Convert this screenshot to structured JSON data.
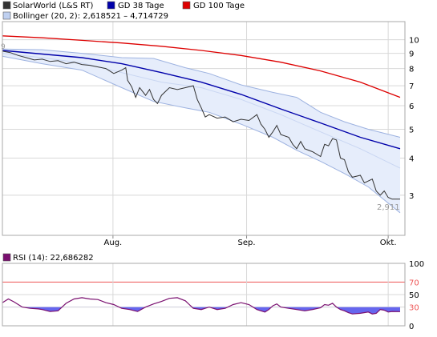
{
  "legend": {
    "series1": "SolarWorld (L&S RT)",
    "series2": "GD 38 Tage",
    "series3": "GD 100 Tage",
    "bollinger": "Bollinger (20, 2): 2,618521  –  4,714729",
    "rsi": "RSI (14): 22,686282"
  },
  "colors": {
    "price": "#333333",
    "gd38": "#0000aa",
    "gd100": "#dd0000",
    "band_fill": "#e6edfb",
    "band_line": "#9db2e0",
    "band_mid": "#c9d6f2",
    "rsi_line": "#7a1070",
    "rsi_fill": "#6666ee",
    "rsi_ref": "#ee5555",
    "grid": "#d8d8d8"
  },
  "chart_data": [
    {
      "type": "line",
      "scale": "log",
      "ylim": [
        2.2,
        11.5
      ],
      "yticks": [
        3,
        4,
        5,
        6,
        7,
        8,
        9,
        10
      ],
      "x_labels": [
        {
          "label": "Aug.",
          "t": 0.278
        },
        {
          "label": "Sep.",
          "t": 0.614
        },
        {
          "label": "Okt.",
          "t": 0.97
        }
      ],
      "price_start_label": "9",
      "last_value_label": "2,911",
      "series": [
        {
          "key": "price",
          "name": "SolarWorld (L&S RT)",
          "points": [
            [
              0,
              9.15
            ],
            [
              0.02,
              9.05
            ],
            [
              0.04,
              8.85
            ],
            [
              0.06,
              8.7
            ],
            [
              0.08,
              8.55
            ],
            [
              0.1,
              8.6
            ],
            [
              0.12,
              8.45
            ],
            [
              0.14,
              8.5
            ],
            [
              0.16,
              8.3
            ],
            [
              0.18,
              8.4
            ],
            [
              0.2,
              8.25
            ],
            [
              0.22,
              8.2
            ],
            [
              0.24,
              8.1
            ],
            [
              0.26,
              8.0
            ],
            [
              0.28,
              7.7
            ],
            [
              0.3,
              7.9
            ],
            [
              0.31,
              8.05
            ],
            [
              0.315,
              7.3
            ],
            [
              0.325,
              6.95
            ],
            [
              0.335,
              6.4
            ],
            [
              0.345,
              6.9
            ],
            [
              0.36,
              6.5
            ],
            [
              0.37,
              6.8
            ],
            [
              0.38,
              6.3
            ],
            [
              0.39,
              6.1
            ],
            [
              0.4,
              6.5
            ],
            [
              0.42,
              6.9
            ],
            [
              0.44,
              6.8
            ],
            [
              0.46,
              6.9
            ],
            [
              0.48,
              7.0
            ],
            [
              0.49,
              6.3
            ],
            [
              0.5,
              5.9
            ],
            [
              0.51,
              5.5
            ],
            [
              0.52,
              5.6
            ],
            [
              0.54,
              5.45
            ],
            [
              0.56,
              5.5
            ],
            [
              0.58,
              5.3
            ],
            [
              0.6,
              5.4
            ],
            [
              0.62,
              5.35
            ],
            [
              0.64,
              5.6
            ],
            [
              0.65,
              5.2
            ],
            [
              0.66,
              5.0
            ],
            [
              0.67,
              4.7
            ],
            [
              0.68,
              4.9
            ],
            [
              0.69,
              5.15
            ],
            [
              0.7,
              4.8
            ],
            [
              0.72,
              4.7
            ],
            [
              0.73,
              4.45
            ],
            [
              0.74,
              4.3
            ],
            [
              0.75,
              4.55
            ],
            [
              0.76,
              4.3
            ],
            [
              0.78,
              4.2
            ],
            [
              0.8,
              4.05
            ],
            [
              0.81,
              4.45
            ],
            [
              0.82,
              4.4
            ],
            [
              0.83,
              4.65
            ],
            [
              0.84,
              4.6
            ],
            [
              0.85,
              4.0
            ],
            [
              0.86,
              3.95
            ],
            [
              0.87,
              3.6
            ],
            [
              0.88,
              3.45
            ],
            [
              0.9,
              3.5
            ],
            [
              0.91,
              3.3
            ],
            [
              0.93,
              3.4
            ],
            [
              0.94,
              3.1
            ],
            [
              0.95,
              3.0
            ],
            [
              0.96,
              3.1
            ],
            [
              0.97,
              2.95
            ],
            [
              0.98,
              2.91
            ],
            [
              1.0,
              2.91
            ]
          ]
        },
        {
          "key": "gd38",
          "name": "GD 38 Tage",
          "points": [
            [
              0,
              9.2
            ],
            [
              0.1,
              8.95
            ],
            [
              0.2,
              8.7
            ],
            [
              0.3,
              8.3
            ],
            [
              0.4,
              7.75
            ],
            [
              0.5,
              7.2
            ],
            [
              0.6,
              6.55
            ],
            [
              0.7,
              5.85
            ],
            [
              0.8,
              5.25
            ],
            [
              0.9,
              4.7
            ],
            [
              1.0,
              4.3
            ]
          ]
        },
        {
          "key": "gd100",
          "name": "GD 100 Tage",
          "points": [
            [
              0,
              10.3
            ],
            [
              0.1,
              10.15
            ],
            [
              0.2,
              9.95
            ],
            [
              0.3,
              9.75
            ],
            [
              0.4,
              9.5
            ],
            [
              0.5,
              9.2
            ],
            [
              0.6,
              8.85
            ],
            [
              0.7,
              8.4
            ],
            [
              0.8,
              7.85
            ],
            [
              0.9,
              7.2
            ],
            [
              1.0,
              6.4
            ]
          ]
        },
        {
          "key": "band_upper",
          "name": "Bollinger upper",
          "points": [
            [
              0,
              9.3
            ],
            [
              0.1,
              9.25
            ],
            [
              0.2,
              9.0
            ],
            [
              0.3,
              8.7
            ],
            [
              0.38,
              8.65
            ],
            [
              0.46,
              8.05
            ],
            [
              0.52,
              7.7
            ],
            [
              0.6,
              7.05
            ],
            [
              0.68,
              6.65
            ],
            [
              0.74,
              6.4
            ],
            [
              0.8,
              5.7
            ],
            [
              0.86,
              5.3
            ],
            [
              0.92,
              5.0
            ],
            [
              1.0,
              4.7
            ]
          ]
        },
        {
          "key": "band_mid",
          "name": "Bollinger middle",
          "points": [
            [
              0,
              9.0
            ],
            [
              0.1,
              8.7
            ],
            [
              0.2,
              8.35
            ],
            [
              0.3,
              7.75
            ],
            [
              0.4,
              7.2
            ],
            [
              0.5,
              6.9
            ],
            [
              0.6,
              6.3
            ],
            [
              0.7,
              5.6
            ],
            [
              0.8,
              4.9
            ],
            [
              0.9,
              4.3
            ],
            [
              1.0,
              3.7
            ]
          ]
        },
        {
          "key": "band_lower",
          "name": "Bollinger lower",
          "points": [
            [
              0,
              8.8
            ],
            [
              0.1,
              8.3
            ],
            [
              0.2,
              7.9
            ],
            [
              0.3,
              6.9
            ],
            [
              0.38,
              6.2
            ],
            [
              0.46,
              5.9
            ],
            [
              0.52,
              5.7
            ],
            [
              0.6,
              5.2
            ],
            [
              0.68,
              4.7
            ],
            [
              0.74,
              4.25
            ],
            [
              0.8,
              3.9
            ],
            [
              0.86,
              3.55
            ],
            [
              0.92,
              3.2
            ],
            [
              1.0,
              2.62
            ]
          ]
        }
      ]
    },
    {
      "type": "area",
      "name": "RSI (14)",
      "ylim": [
        0,
        100
      ],
      "yticks": [
        0,
        30,
        50,
        70,
        100
      ],
      "reference": 30,
      "reference_upper": 70,
      "points": [
        [
          0,
          37
        ],
        [
          0.015,
          43
        ],
        [
          0.03,
          38
        ],
        [
          0.05,
          30
        ],
        [
          0.07,
          28
        ],
        [
          0.09,
          27
        ],
        [
          0.1,
          26
        ],
        [
          0.12,
          23
        ],
        [
          0.14,
          24
        ],
        [
          0.16,
          36
        ],
        [
          0.18,
          43
        ],
        [
          0.2,
          45
        ],
        [
          0.22,
          43
        ],
        [
          0.24,
          42
        ],
        [
          0.26,
          37
        ],
        [
          0.28,
          34
        ],
        [
          0.3,
          28
        ],
        [
          0.32,
          26
        ],
        [
          0.34,
          23
        ],
        [
          0.36,
          30
        ],
        [
          0.38,
          35
        ],
        [
          0.4,
          39
        ],
        [
          0.42,
          44
        ],
        [
          0.44,
          45
        ],
        [
          0.46,
          40
        ],
        [
          0.47,
          34
        ],
        [
          0.48,
          28
        ],
        [
          0.5,
          26
        ],
        [
          0.52,
          30
        ],
        [
          0.54,
          26
        ],
        [
          0.56,
          28
        ],
        [
          0.58,
          34
        ],
        [
          0.6,
          37
        ],
        [
          0.62,
          34
        ],
        [
          0.63,
          30
        ],
        [
          0.64,
          26
        ],
        [
          0.66,
          22
        ],
        [
          0.67,
          26
        ],
        [
          0.68,
          32
        ],
        [
          0.69,
          35
        ],
        [
          0.7,
          30
        ],
        [
          0.72,
          28
        ],
        [
          0.74,
          26
        ],
        [
          0.76,
          24
        ],
        [
          0.78,
          26
        ],
        [
          0.8,
          29
        ],
        [
          0.81,
          34
        ],
        [
          0.82,
          33
        ],
        [
          0.83,
          36
        ],
        [
          0.84,
          30
        ],
        [
          0.85,
          26
        ],
        [
          0.86,
          24
        ],
        [
          0.87,
          21
        ],
        [
          0.88,
          19
        ],
        [
          0.9,
          20
        ],
        [
          0.92,
          22
        ],
        [
          0.93,
          19
        ],
        [
          0.94,
          20
        ],
        [
          0.95,
          26
        ],
        [
          0.96,
          25
        ],
        [
          0.97,
          22
        ],
        [
          0.98,
          23
        ],
        [
          1.0,
          22.7
        ]
      ]
    }
  ]
}
